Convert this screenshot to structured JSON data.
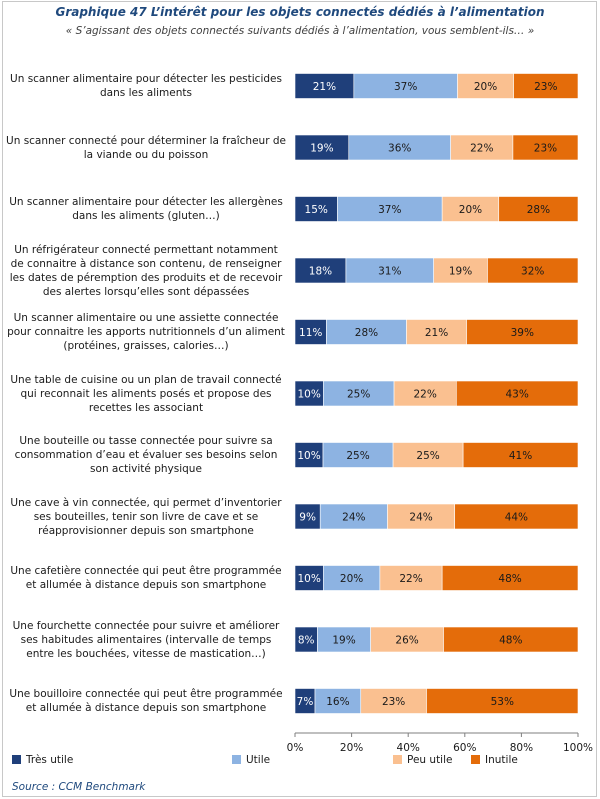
{
  "chart_data": {
    "type": "bar",
    "orientation": "horizontal",
    "stacked": "percent",
    "title": "Graphique 47 L’intérêt pour les objets connectés dédiés à l’alimentation",
    "subtitle": "« S’agissant des objets connectés suivants dédiés à l’alimentation, vous semblent-ils… »",
    "source": "Source : CCM Benchmark",
    "categories": [
      "Un scanner alimentaire pour détecter les pesticides dans les aliments",
      "Un scanner connecté pour déterminer la fraîcheur de la viande ou du poisson",
      "Un scanner alimentaire pour détecter les allergènes dans les aliments (gluten…)",
      "Un réfrigérateur connecté permettant notamment de connaitre à distance son contenu, de renseigner les dates de péremption des produits et de recevoir des alertes lorsqu’elles sont dépassées",
      "Un scanner alimentaire ou une assiette connectée pour connaitre les apports nutritionnels d’un aliment (protéines, graisses, calories…)",
      "Une table de cuisine ou un plan de travail connecté qui reconnait les aliments posés et propose des recettes les associant",
      "Une bouteille ou tasse connectée pour suivre sa consommation d’eau et évaluer ses besoins selon son activité physique",
      "Une cave à vin connectée, qui permet d’inventorier ses bouteilles, tenir son livre de cave et se réapprovisionner depuis son smartphone",
      "Une cafetière connectée qui peut être programmée et allumée à distance depuis son smartphone",
      "Une fourchette connectée pour suivre et améliorer ses habitudes alimentaires (intervalle de temps entre les bouchées, vitesse de mastication…)",
      "Une bouilloire connectée qui peut être programmée et allumée à distance depuis son smartphone"
    ],
    "series": [
      {
        "name": "Très utile",
        "color": "#1f3f7a",
        "values": [
          21,
          19,
          15,
          18,
          11,
          10,
          10,
          9,
          10,
          8,
          7
        ]
      },
      {
        "name": "Utile",
        "color": "#8db3e2",
        "values": [
          37,
          36,
          37,
          31,
          28,
          25,
          25,
          24,
          20,
          19,
          16
        ]
      },
      {
        "name": "Peu utile",
        "color": "#fac090",
        "values": [
          20,
          22,
          20,
          19,
          21,
          22,
          25,
          24,
          22,
          26,
          23
        ]
      },
      {
        "name": "Inutile",
        "color": "#e46c0a",
        "values": [
          23,
          23,
          28,
          32,
          39,
          43,
          41,
          44,
          48,
          48,
          53
        ]
      }
    ],
    "x_ticks": [
      "0%",
      "20%",
      "40%",
      "60%",
      "80%",
      "100%"
    ],
    "xlim": [
      0,
      100
    ],
    "grid": false,
    "legend_position": "bottom"
  }
}
